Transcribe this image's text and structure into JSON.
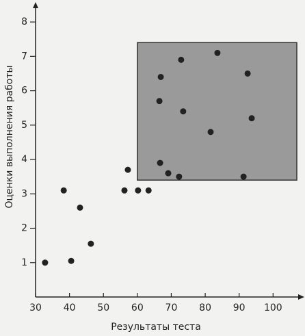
{
  "chart_data": {
    "type": "scatter",
    "xlabel": "Результаты теста",
    "ylabel": "Оценки выполнения работы",
    "x": [
      32.8,
      38.3,
      40.5,
      43.1,
      46.3,
      56.2,
      57.2,
      60.2,
      63.3,
      66.7,
      69.1,
      66.9,
      66.5,
      72.3,
      72.9,
      73.5,
      81.6,
      83.6,
      91.3,
      92.5,
      93.7
    ],
    "values": [
      1.0,
      3.1,
      1.05,
      2.6,
      1.55,
      3.1,
      3.7,
      3.1,
      3.1,
      3.9,
      3.6,
      6.4,
      5.7,
      3.5,
      6.9,
      5.4,
      4.8,
      7.1,
      3.5,
      6.5,
      5.2
    ],
    "color": "#222222",
    "xlim": [
      30,
      108
    ],
    "ylim": [
      0,
      8.5
    ],
    "xticks": [
      30,
      40,
      50,
      60,
      70,
      80,
      90,
      100
    ],
    "yticks": [
      1,
      2,
      3,
      4,
      5,
      6,
      7,
      8
    ],
    "highlight_region": {
      "x": [
        60,
        107
      ],
      "y": [
        3.4,
        7.4
      ],
      "color": "#9a9a9a"
    }
  }
}
